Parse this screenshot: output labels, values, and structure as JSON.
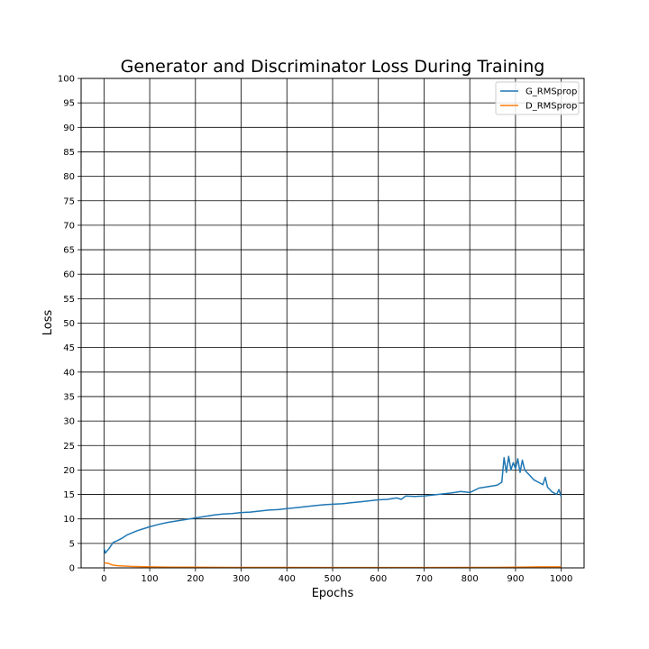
{
  "chart_data": {
    "type": "line",
    "title": "Generator and Discriminator Loss During Training",
    "xlabel": "Epochs",
    "ylabel": "Loss",
    "xlim": [
      -50,
      1050
    ],
    "ylim": [
      0,
      100
    ],
    "xticks": [
      0,
      100,
      200,
      300,
      400,
      500,
      600,
      700,
      800,
      900,
      1000
    ],
    "yticks": [
      0,
      5,
      10,
      15,
      20,
      25,
      30,
      35,
      40,
      45,
      50,
      55,
      60,
      65,
      70,
      75,
      80,
      85,
      90,
      95,
      100
    ],
    "grid": true,
    "legend_position": "top-right",
    "series": [
      {
        "name": "G_RMSprop",
        "color": "#1f77b4",
        "x": [
          0,
          3,
          6,
          10,
          15,
          20,
          30,
          40,
          50,
          60,
          70,
          80,
          90,
          100,
          120,
          140,
          160,
          180,
          200,
          220,
          240,
          260,
          280,
          300,
          320,
          340,
          360,
          380,
          400,
          420,
          440,
          460,
          480,
          500,
          520,
          540,
          560,
          580,
          600,
          620,
          640,
          650,
          660,
          680,
          700,
          720,
          740,
          760,
          780,
          800,
          820,
          840,
          860,
          870,
          875,
          880,
          885,
          890,
          895,
          900,
          905,
          910,
          915,
          920,
          930,
          940,
          950,
          960,
          965,
          970,
          975,
          980,
          990,
          995,
          1000
        ],
        "y": [
          4.0,
          3.0,
          3.4,
          3.8,
          4.5,
          5.2,
          5.6,
          6.1,
          6.7,
          7.1,
          7.5,
          7.8,
          8.1,
          8.4,
          8.9,
          9.3,
          9.6,
          9.9,
          10.2,
          10.5,
          10.8,
          11.0,
          11.1,
          11.3,
          11.4,
          11.6,
          11.8,
          11.9,
          12.1,
          12.3,
          12.5,
          12.7,
          12.9,
          13.0,
          13.1,
          13.3,
          13.5,
          13.7,
          13.9,
          14.0,
          14.3,
          14.0,
          14.7,
          14.6,
          14.7,
          14.9,
          15.1,
          15.3,
          15.6,
          15.4,
          16.3,
          16.6,
          16.9,
          17.5,
          22.5,
          19.5,
          22.8,
          20.0,
          21.5,
          20.3,
          22.3,
          19.5,
          22.0,
          20.0,
          19.0,
          18.0,
          17.5,
          17.0,
          18.5,
          16.5,
          16.0,
          15.5,
          15.0,
          16.0,
          14.5
        ]
      },
      {
        "name": "D_RMSprop",
        "color": "#ff7f0e",
        "x": [
          0,
          5,
          10,
          15,
          20,
          30,
          40,
          60,
          80,
          100,
          150,
          200,
          300,
          400,
          500,
          600,
          700,
          800,
          850,
          900,
          950,
          1000
        ],
        "y": [
          1.0,
          1.0,
          0.9,
          0.7,
          0.55,
          0.45,
          0.38,
          0.3,
          0.25,
          0.2,
          0.15,
          0.12,
          0.1,
          0.1,
          0.08,
          0.08,
          0.08,
          0.1,
          0.1,
          0.15,
          0.2,
          0.2
        ]
      }
    ]
  }
}
